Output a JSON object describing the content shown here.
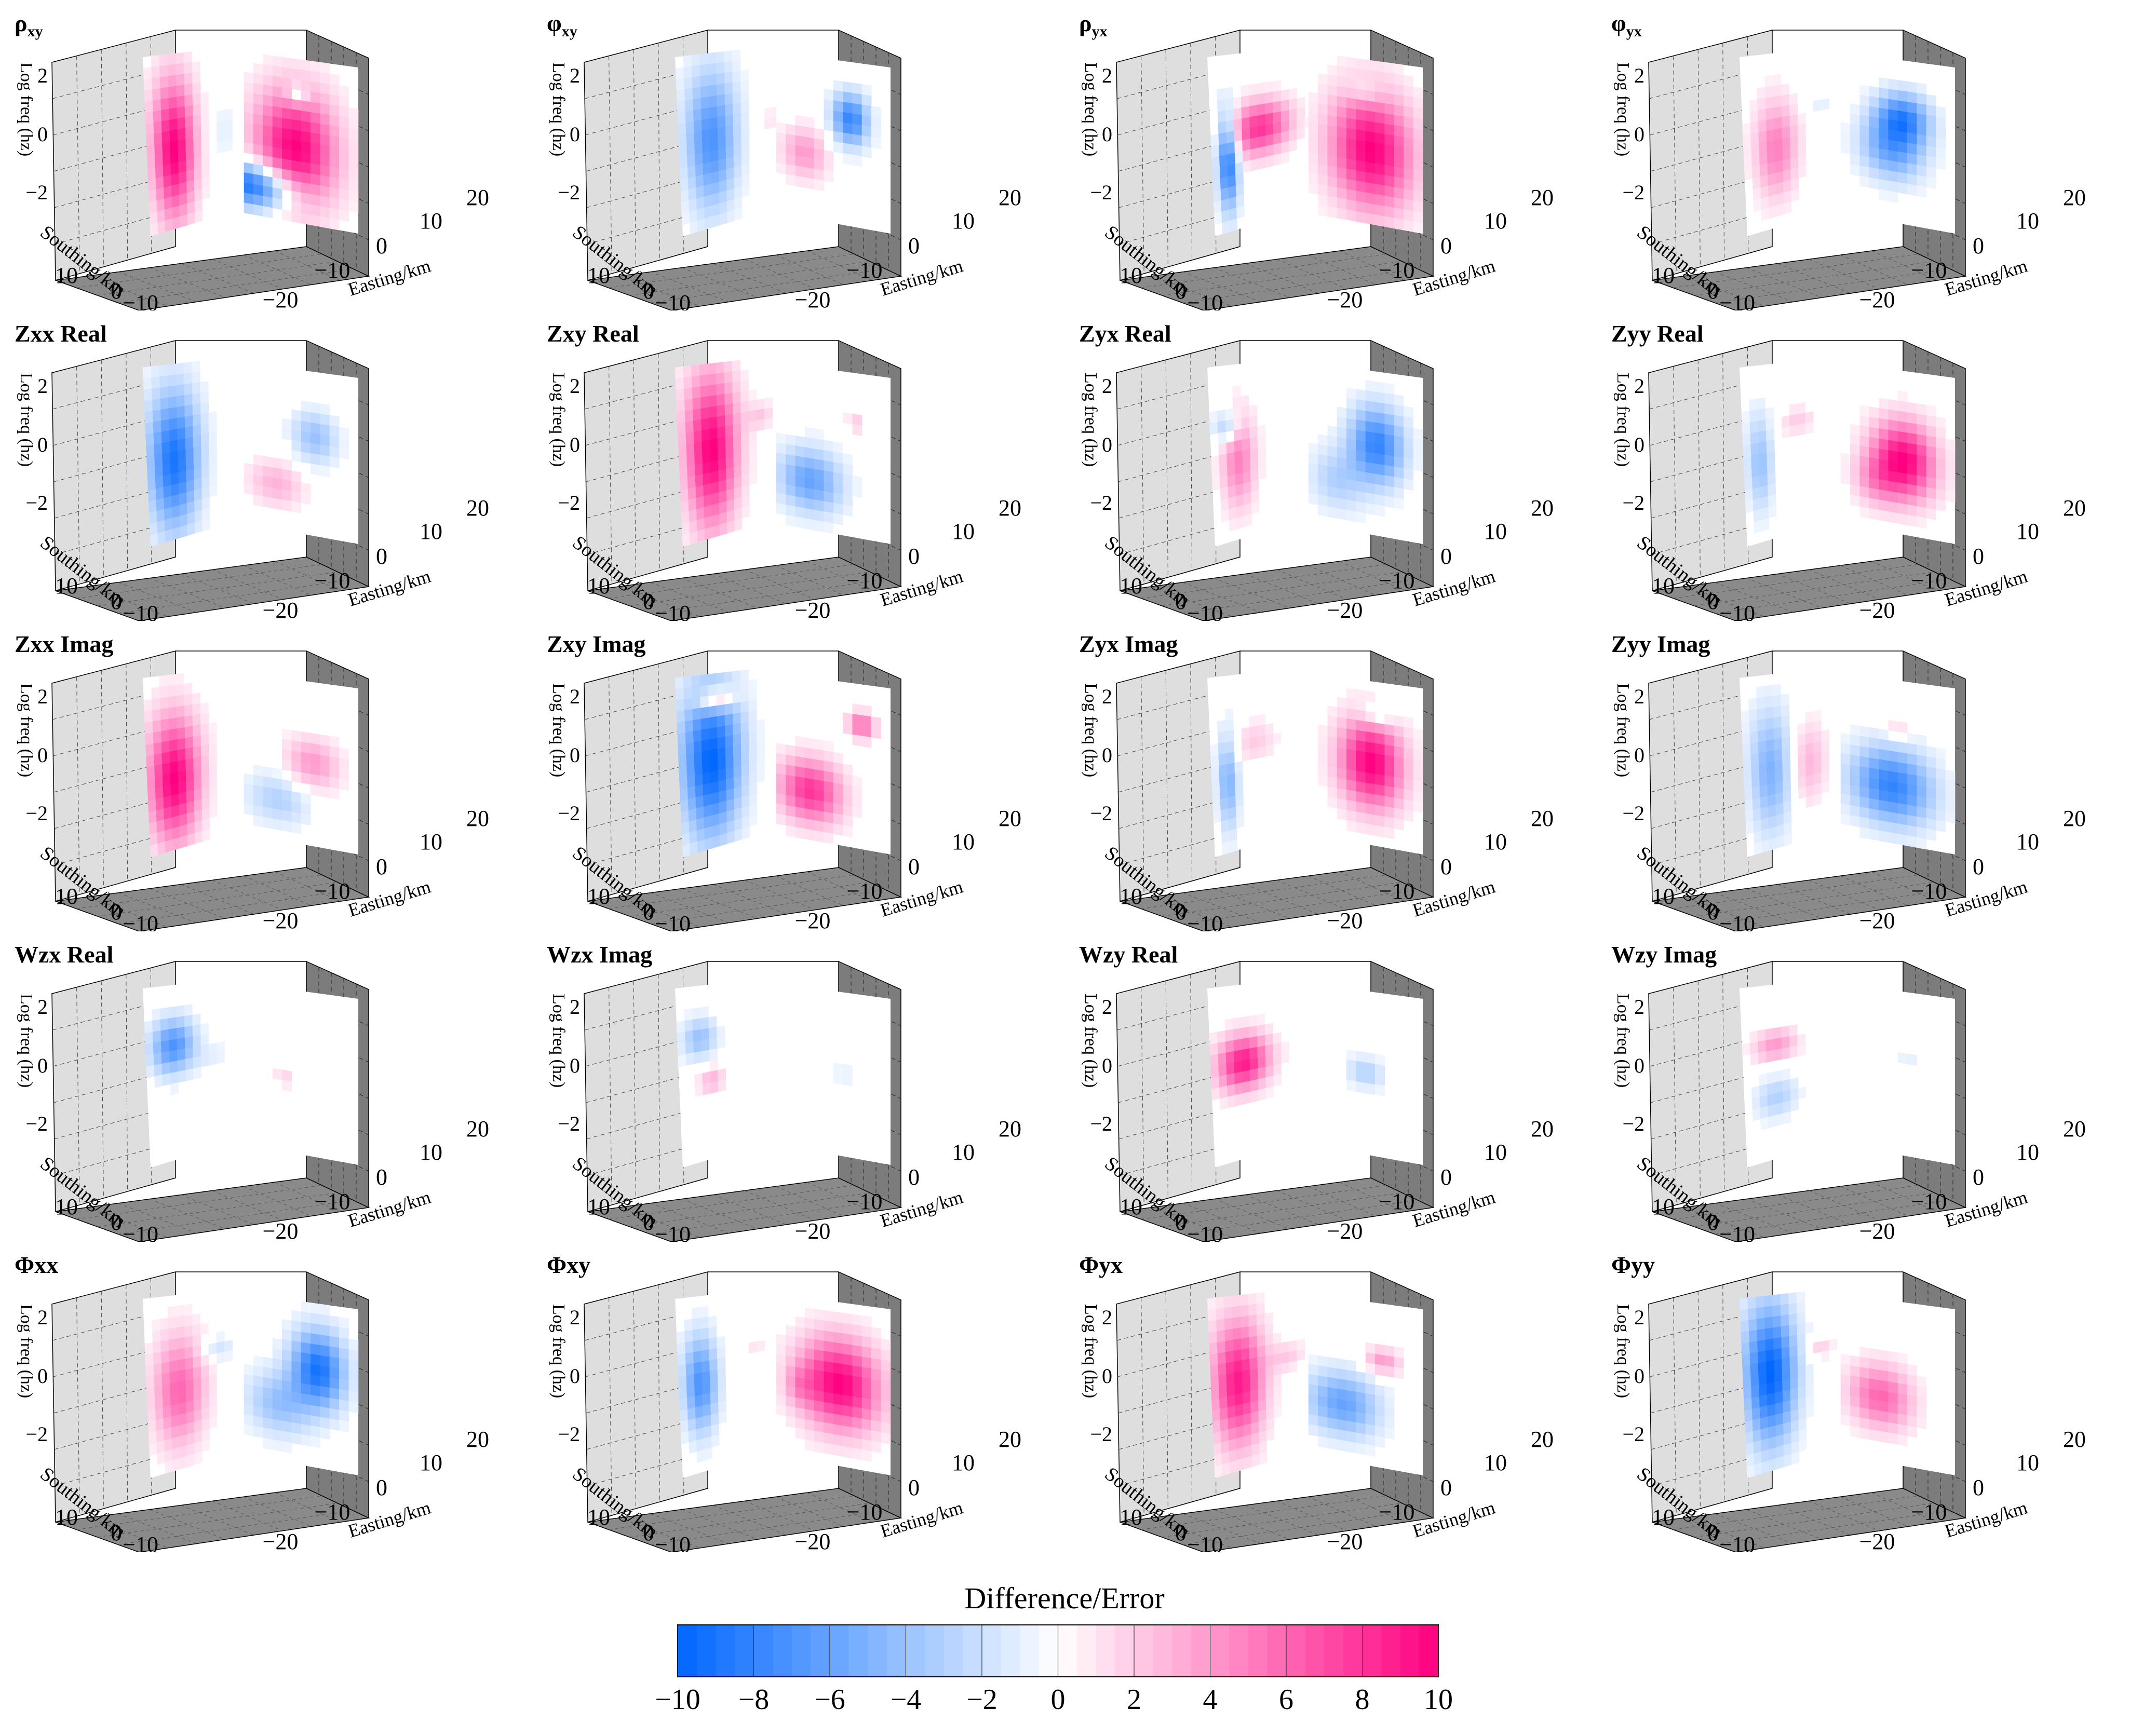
{
  "figure": {
    "colorbar_title": "Difference/Error",
    "axis_labels": {
      "z": "Log freq (hz)",
      "y": "Southing/km",
      "x": "Easting/km"
    },
    "tick_labels": {
      "z": [
        "2",
        "0",
        "−2"
      ],
      "y": [
        "10",
        "0",
        "−10"
      ],
      "x": [
        "−20",
        "−10",
        "0",
        "10",
        "20"
      ]
    },
    "colors": {
      "negative": "#0066ff",
      "positive": "#ff0080",
      "floor": "#8a8a8a",
      "left_wall": "#dedede",
      "right_wall": "#7c7c7c"
    }
  },
  "chart_data": {
    "type": "heatmap",
    "description_units": "Difference/Error",
    "colorbar": {
      "ticks": [
        -10,
        -8,
        -6,
        -4,
        -2,
        0,
        2,
        4,
        6,
        8,
        10
      ],
      "tick_labels": [
        "−10",
        "−8",
        "−6",
        "−4",
        "−2",
        "0",
        "2",
        "4",
        "6",
        "8",
        "10"
      ],
      "range": [
        -10,
        10
      ]
    },
    "axes": {
      "easting_km": [
        -25,
        25
      ],
      "southing_km": [
        -10,
        10
      ],
      "log_freq_hz": [
        -3,
        3
      ]
    },
    "panels": [
      {
        "id": "rho-xy",
        "title": "ρ",
        "sub": "xy",
        "blobs": [
          [
            0.08,
            0.82,
            0.45,
            0.18,
            -10
          ],
          [
            0.45,
            0.55,
            0.45,
            0.45,
            10
          ],
          [
            0.47,
            0.22,
            0.12,
            0.08,
            -4
          ]
        ],
        "rblobs": [
          [
            0.25,
            0.55,
            0.25,
            0.5,
            10
          ],
          [
            0.7,
            0.5,
            0.2,
            0.2,
            -1
          ]
        ]
      },
      {
        "id": "phi-xy",
        "title": "φ",
        "sub": "xy",
        "blobs": [
          [
            0.25,
            0.6,
            0.25,
            0.2,
            4
          ],
          [
            0.65,
            0.35,
            0.2,
            0.2,
            -8
          ]
        ],
        "rblobs": [
          [
            0.3,
            0.5,
            0.3,
            0.5,
            -7
          ],
          [
            0.85,
            0.45,
            0.2,
            0.1,
            1
          ]
        ]
      },
      {
        "id": "rho-yx",
        "title": "ρ",
        "sub": "yx",
        "blobs": [
          [
            0.55,
            0.55,
            0.45,
            0.45,
            10
          ],
          [
            0.5,
            0.2,
            0.2,
            0.1,
            -2
          ]
        ],
        "rblobs": [
          [
            0.15,
            0.6,
            0.12,
            0.35,
            -9
          ],
          [
            0.45,
            0.45,
            0.35,
            0.2,
            8
          ]
        ]
      },
      {
        "id": "phi-yx",
        "title": "φ",
        "sub": "yx",
        "blobs": [
          [
            0.45,
            0.55,
            0.35,
            0.25,
            -6
          ],
          [
            0.55,
            0.35,
            0.3,
            0.2,
            -7
          ]
        ],
        "rblobs": [
          [
            0.3,
            0.55,
            0.25,
            0.35,
            5
          ],
          [
            0.7,
            0.35,
            0.2,
            0.08,
            -1
          ]
        ]
      },
      {
        "id": "zxx-real",
        "title": "Zxx Real",
        "blobs": [
          [
            0.28,
            0.72,
            0.3,
            0.18,
            3
          ],
          [
            0.62,
            0.4,
            0.25,
            0.2,
            -4
          ]
        ],
        "rblobs": [
          [
            0.25,
            0.55,
            0.3,
            0.5,
            -9
          ]
        ]
      },
      {
        "id": "zxy-real",
        "title": "Zxy Real",
        "blobs": [
          [
            0.3,
            0.7,
            0.35,
            0.25,
            -6
          ],
          [
            0.7,
            0.3,
            0.1,
            0.08,
            2
          ]
        ],
        "rblobs": [
          [
            0.3,
            0.5,
            0.3,
            0.55,
            10
          ],
          [
            0.75,
            0.35,
            0.15,
            0.1,
            2
          ]
        ]
      },
      {
        "id": "zyx-real",
        "title": "Zyx Real",
        "blobs": [
          [
            0.25,
            0.7,
            0.3,
            0.25,
            -3
          ],
          [
            0.6,
            0.45,
            0.3,
            0.3,
            -8
          ]
        ],
        "rblobs": [
          [
            0.25,
            0.55,
            0.2,
            0.35,
            5
          ],
          [
            0.15,
            0.35,
            0.15,
            0.12,
            -4
          ]
        ]
      },
      {
        "id": "zyy-real",
        "title": "Zyy Real",
        "blobs": [
          [
            0.55,
            0.55,
            0.35,
            0.3,
            10
          ],
          [
            0.3,
            0.7,
            0.25,
            0.2,
            3
          ]
        ],
        "rblobs": [
          [
            0.15,
            0.55,
            0.15,
            0.35,
            -4
          ],
          [
            0.5,
            0.35,
            0.2,
            0.1,
            2
          ]
        ]
      },
      {
        "id": "zxx-imag",
        "title": "Zxx Imag",
        "blobs": [
          [
            0.3,
            0.75,
            0.35,
            0.2,
            -3
          ],
          [
            0.6,
            0.5,
            0.3,
            0.2,
            4
          ]
        ],
        "rblobs": [
          [
            0.25,
            0.6,
            0.3,
            0.45,
            10
          ]
        ]
      },
      {
        "id": "zxy-imag",
        "title": "Zxy Imag",
        "blobs": [
          [
            0.3,
            0.7,
            0.35,
            0.25,
            8
          ],
          [
            0.75,
            0.25,
            0.15,
            0.1,
            6
          ]
        ],
        "rblobs": [
          [
            0.3,
            0.5,
            0.35,
            0.55,
            -10
          ],
          [
            0.35,
            0.15,
            0.2,
            0.08,
            6
          ]
        ]
      },
      {
        "id": "zyx-imag",
        "title": "Zyx Imag",
        "blobs": [
          [
            0.55,
            0.5,
            0.35,
            0.35,
            10
          ],
          [
            0.6,
            0.2,
            0.2,
            0.1,
            -3
          ]
        ],
        "rblobs": [
          [
            0.15,
            0.6,
            0.12,
            0.35,
            -5
          ],
          [
            0.4,
            0.4,
            0.25,
            0.15,
            2
          ]
        ]
      },
      {
        "id": "zyy-imag",
        "title": "Zyy Imag",
        "blobs": [
          [
            0.45,
            0.65,
            0.45,
            0.3,
            -8
          ],
          [
            0.5,
            0.3,
            0.15,
            0.1,
            2
          ]
        ],
        "rblobs": [
          [
            0.25,
            0.55,
            0.25,
            0.45,
            -5
          ],
          [
            0.6,
            0.55,
            0.2,
            0.3,
            3
          ]
        ]
      },
      {
        "id": "wzx-real",
        "title": "Wzx Real",
        "blobs": [
          [
            0.35,
            0.55,
            0.1,
            0.06,
            2
          ]
        ],
        "rblobs": [
          [
            0.25,
            0.35,
            0.25,
            0.2,
            -7
          ],
          [
            0.6,
            0.45,
            0.2,
            0.1,
            -1
          ]
        ]
      },
      {
        "id": "wzx-imag",
        "title": "Wzx Imag",
        "blobs": [
          [
            0.6,
            0.5,
            0.15,
            0.08,
            -1
          ]
        ],
        "rblobs": [
          [
            0.2,
            0.3,
            0.2,
            0.15,
            -4
          ],
          [
            0.3,
            0.55,
            0.15,
            0.1,
            3
          ]
        ]
      },
      {
        "id": "wzy-real",
        "title": "Wzy Real",
        "blobs": [
          [
            0.5,
            0.5,
            0.2,
            0.12,
            -3
          ]
        ],
        "rblobs": [
          [
            0.3,
            0.45,
            0.3,
            0.2,
            9
          ]
        ]
      },
      {
        "id": "wzy-imag",
        "title": "Wzy Imag",
        "blobs": [
          [
            0.6,
            0.4,
            0.15,
            0.06,
            -1
          ]
        ],
        "rblobs": [
          [
            0.3,
            0.35,
            0.25,
            0.12,
            4
          ],
          [
            0.3,
            0.65,
            0.25,
            0.15,
            -3
          ]
        ]
      },
      {
        "id": "phi-xx",
        "title": "Φxx",
        "blobs": [
          [
            0.3,
            0.65,
            0.35,
            0.25,
            -4
          ],
          [
            0.65,
            0.4,
            0.3,
            0.3,
            -9
          ]
        ],
        "rblobs": [
          [
            0.3,
            0.55,
            0.3,
            0.4,
            6
          ],
          [
            0.65,
            0.35,
            0.2,
            0.1,
            -2
          ]
        ]
      },
      {
        "id": "phi-xy2",
        "title": "Φxy",
        "blobs": [
          [
            0.55,
            0.5,
            0.45,
            0.35,
            10
          ],
          [
            0.2,
            0.55,
            0.15,
            0.15,
            2
          ]
        ],
        "rblobs": [
          [
            0.2,
            0.5,
            0.2,
            0.35,
            -7
          ],
          [
            0.7,
            0.35,
            0.15,
            0.1,
            1
          ]
        ]
      },
      {
        "id": "phi-yx2",
        "title": "Φyx",
        "blobs": [
          [
            0.3,
            0.65,
            0.4,
            0.25,
            -6
          ],
          [
            0.65,
            0.35,
            0.2,
            0.1,
            4
          ]
        ],
        "rblobs": [
          [
            0.25,
            0.5,
            0.3,
            0.45,
            9
          ],
          [
            0.7,
            0.4,
            0.2,
            0.1,
            2
          ]
        ]
      },
      {
        "id": "phi-yy",
        "title": "Φyy",
        "blobs": [
          [
            0.35,
            0.6,
            0.35,
            0.25,
            6
          ]
        ],
        "rblobs": [
          [
            0.25,
            0.45,
            0.3,
            0.5,
            -10
          ],
          [
            0.7,
            0.35,
            0.15,
            0.08,
            2
          ]
        ]
      }
    ]
  }
}
